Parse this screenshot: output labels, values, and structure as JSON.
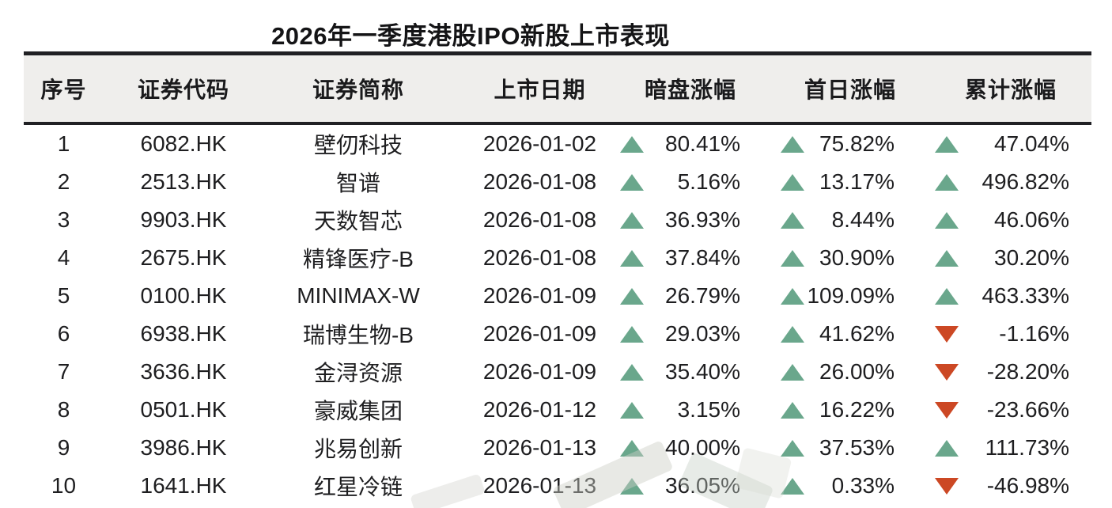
{
  "chart_data": {
    "type": "table",
    "title": "2026年一季度港股IPO新股上市表现",
    "columns": [
      "序号",
      "证券代码",
      "证券简称",
      "上市日期",
      "暗盘涨幅",
      "首日涨幅",
      "累计涨幅"
    ],
    "rows": [
      {
        "serial": "1",
        "code": "6082.HK",
        "name": "壁仞科技",
        "date": "2026-01-02",
        "dark_gain": {
          "value": "80.41%",
          "dir": "up"
        },
        "first_day_gain": {
          "value": "75.82%",
          "dir": "up"
        },
        "cumulative_gain": {
          "value": "47.04%",
          "dir": "up"
        }
      },
      {
        "serial": "2",
        "code": "2513.HK",
        "name": "智谱",
        "date": "2026-01-08",
        "dark_gain": {
          "value": "5.16%",
          "dir": "up"
        },
        "first_day_gain": {
          "value": "13.17%",
          "dir": "up"
        },
        "cumulative_gain": {
          "value": "496.82%",
          "dir": "up"
        }
      },
      {
        "serial": "3",
        "code": "9903.HK",
        "name": "天数智芯",
        "date": "2026-01-08",
        "dark_gain": {
          "value": "36.93%",
          "dir": "up"
        },
        "first_day_gain": {
          "value": "8.44%",
          "dir": "up"
        },
        "cumulative_gain": {
          "value": "46.06%",
          "dir": "up"
        }
      },
      {
        "serial": "4",
        "code": "2675.HK",
        "name": "精锋医疗-B",
        "date": "2026-01-08",
        "dark_gain": {
          "value": "37.84%",
          "dir": "up"
        },
        "first_day_gain": {
          "value": "30.90%",
          "dir": "up"
        },
        "cumulative_gain": {
          "value": "30.20%",
          "dir": "up"
        }
      },
      {
        "serial": "5",
        "code": "0100.HK",
        "name": "MINIMAX-W",
        "date": "2026-01-09",
        "dark_gain": {
          "value": "26.79%",
          "dir": "up"
        },
        "first_day_gain": {
          "value": "109.09%",
          "dir": "up"
        },
        "cumulative_gain": {
          "value": "463.33%",
          "dir": "up"
        }
      },
      {
        "serial": "6",
        "code": "6938.HK",
        "name": "瑞博生物-B",
        "date": "2026-01-09",
        "dark_gain": {
          "value": "29.03%",
          "dir": "up"
        },
        "first_day_gain": {
          "value": "41.62%",
          "dir": "up"
        },
        "cumulative_gain": {
          "value": "-1.16%",
          "dir": "down"
        }
      },
      {
        "serial": "7",
        "code": "3636.HK",
        "name": "金浔资源",
        "date": "2026-01-09",
        "dark_gain": {
          "value": "35.40%",
          "dir": "up"
        },
        "first_day_gain": {
          "value": "26.00%",
          "dir": "up"
        },
        "cumulative_gain": {
          "value": "-28.20%",
          "dir": "down"
        }
      },
      {
        "serial": "8",
        "code": "0501.HK",
        "name": "豪威集团",
        "date": "2026-01-12",
        "dark_gain": {
          "value": "3.15%",
          "dir": "up"
        },
        "first_day_gain": {
          "value": "16.22%",
          "dir": "up"
        },
        "cumulative_gain": {
          "value": "-23.66%",
          "dir": "down"
        }
      },
      {
        "serial": "9",
        "code": "3986.HK",
        "name": "兆易创新",
        "date": "2026-01-13",
        "dark_gain": {
          "value": "40.00%",
          "dir": "up"
        },
        "first_day_gain": {
          "value": "37.53%",
          "dir": "up"
        },
        "cumulative_gain": {
          "value": "111.73%",
          "dir": "up"
        }
      },
      {
        "serial": "10",
        "code": "1641.HK",
        "name": "红星冷链",
        "date": "2026-01-13",
        "dark_gain": {
          "value": "36.05%",
          "dir": "up"
        },
        "first_day_gain": {
          "value": "0.33%",
          "dir": "up"
        },
        "cumulative_gain": {
          "value": "-46.98%",
          "dir": "down"
        }
      }
    ],
    "layout": {
      "grid": "off",
      "header_band": true,
      "percent_columns": [
        "暗盘涨幅",
        "首日涨幅",
        "累计涨幅"
      ]
    }
  },
  "icons": {
    "up_triangle": "▲",
    "down_triangle": "▼"
  },
  "colors": {
    "up_green": "#6aa78c",
    "down_red": "#cc4824",
    "header_bg": "#efeeec",
    "rule_black": "#202024",
    "text": "#1e1e20"
  }
}
